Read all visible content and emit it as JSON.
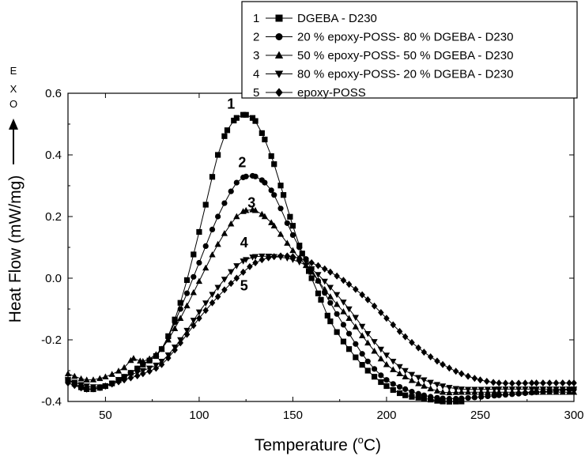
{
  "chart_data": {
    "type": "line",
    "xlabel": "Temperature (°C)",
    "xlabel_main": "Temperature (",
    "xlabel_deg": "o",
    "xlabel_unit": "C)",
    "ylabel": "Heat Flow (mW/mg)",
    "exo_label": [
      "E",
      "X",
      "O"
    ],
    "xlim": [
      30,
      300
    ],
    "ylim": [
      -0.4,
      0.6
    ],
    "xticks": [
      50,
      100,
      150,
      200,
      250,
      300
    ],
    "xtick_labels": [
      "50",
      "100",
      "150",
      "200",
      "250",
      "300"
    ],
    "yticks": [
      -0.4,
      -0.2,
      0.0,
      0.2,
      0.4,
      0.6
    ],
    "ytick_labels": [
      "-0.4",
      "-0.2",
      "0.0",
      "0.2",
      "0.4",
      "0.6"
    ],
    "legend_position": "top-right",
    "series": [
      {
        "id": "1",
        "name": "DGEBA - D230",
        "marker": "square",
        "x": [
          30,
          40,
          50,
          60,
          70,
          80,
          90,
          100,
          110,
          115,
          120,
          125,
          130,
          135,
          140,
          145,
          150,
          155,
          160,
          165,
          170,
          180,
          190,
          200,
          210,
          220,
          230,
          240
        ],
        "y": [
          -0.33,
          -0.36,
          -0.35,
          -0.32,
          -0.28,
          -0.23,
          -0.08,
          0.15,
          0.4,
          0.48,
          0.52,
          0.53,
          0.51,
          0.45,
          0.37,
          0.27,
          0.17,
          0.08,
          0.0,
          -0.07,
          -0.14,
          -0.23,
          -0.3,
          -0.35,
          -0.38,
          -0.39,
          -0.4,
          -0.4
        ]
      },
      {
        "id": "2",
        "name": "20 % epoxy-POSS- 80 % DGEBA - D230",
        "marker": "circle",
        "x": [
          30,
          40,
          50,
          60,
          70,
          80,
          90,
          100,
          110,
          120,
          125,
          130,
          135,
          140,
          150,
          160,
          170,
          180,
          190,
          200,
          210,
          220,
          230,
          240,
          260,
          280,
          300
        ],
        "y": [
          -0.33,
          -0.36,
          -0.35,
          -0.32,
          -0.28,
          -0.23,
          -0.1,
          0.05,
          0.2,
          0.31,
          0.33,
          0.33,
          0.31,
          0.27,
          0.14,
          0.03,
          -0.08,
          -0.18,
          -0.27,
          -0.33,
          -0.36,
          -0.38,
          -0.39,
          -0.39,
          -0.38,
          -0.37,
          -0.36
        ]
      },
      {
        "id": "3",
        "name": "50 % epoxy-POSS- 50 % DGEBA - D230",
        "marker": "triangle-up",
        "x": [
          30,
          40,
          50,
          60,
          65,
          70,
          80,
          90,
          100,
          110,
          120,
          125,
          130,
          135,
          140,
          150,
          160,
          170,
          180,
          190,
          200,
          210,
          220,
          230,
          240,
          260,
          280,
          300
        ],
        "y": [
          -0.31,
          -0.33,
          -0.32,
          -0.29,
          -0.26,
          -0.27,
          -0.23,
          -0.13,
          -0.01,
          0.11,
          0.2,
          0.22,
          0.22,
          0.2,
          0.17,
          0.09,
          0.02,
          -0.06,
          -0.13,
          -0.21,
          -0.28,
          -0.32,
          -0.35,
          -0.37,
          -0.37,
          -0.37,
          -0.37,
          -0.37
        ]
      },
      {
        "id": "4",
        "name": "80 % epoxy-POSS- 20 % DGEBA - D230",
        "marker": "triangle-down",
        "x": [
          30,
          40,
          50,
          60,
          70,
          80,
          90,
          100,
          110,
          120,
          125,
          130,
          140,
          150,
          160,
          170,
          180,
          190,
          200,
          210,
          220,
          230,
          240,
          260,
          280,
          300
        ],
        "y": [
          -0.33,
          -0.35,
          -0.35,
          -0.32,
          -0.3,
          -0.27,
          -0.2,
          -0.11,
          -0.03,
          0.04,
          0.06,
          0.07,
          0.07,
          0.06,
          0.03,
          -0.03,
          -0.1,
          -0.18,
          -0.25,
          -0.3,
          -0.33,
          -0.35,
          -0.36,
          -0.36,
          -0.36,
          -0.36
        ]
      },
      {
        "id": "5",
        "name": "epoxy-POSS",
        "marker": "diamond",
        "x": [
          30,
          40,
          50,
          60,
          70,
          80,
          90,
          100,
          110,
          120,
          130,
          140,
          150,
          160,
          170,
          180,
          190,
          200,
          210,
          220,
          230,
          240,
          250,
          260,
          280,
          300
        ],
        "y": [
          -0.34,
          -0.36,
          -0.35,
          -0.33,
          -0.31,
          -0.28,
          -0.21,
          -0.13,
          -0.06,
          0.0,
          0.05,
          0.07,
          0.07,
          0.05,
          0.02,
          -0.02,
          -0.07,
          -0.13,
          -0.19,
          -0.24,
          -0.28,
          -0.31,
          -0.33,
          -0.34,
          -0.34,
          -0.34
        ]
      }
    ],
    "curve_labels": [
      {
        "text": "1",
        "x": 117,
        "y": 0.55
      },
      {
        "text": "2",
        "x": 123,
        "y": 0.36
      },
      {
        "text": "3",
        "x": 128,
        "y": 0.23
      },
      {
        "text": "4",
        "x": 124,
        "y": 0.1
      },
      {
        "text": "5",
        "x": 124,
        "y": -0.04
      }
    ]
  }
}
